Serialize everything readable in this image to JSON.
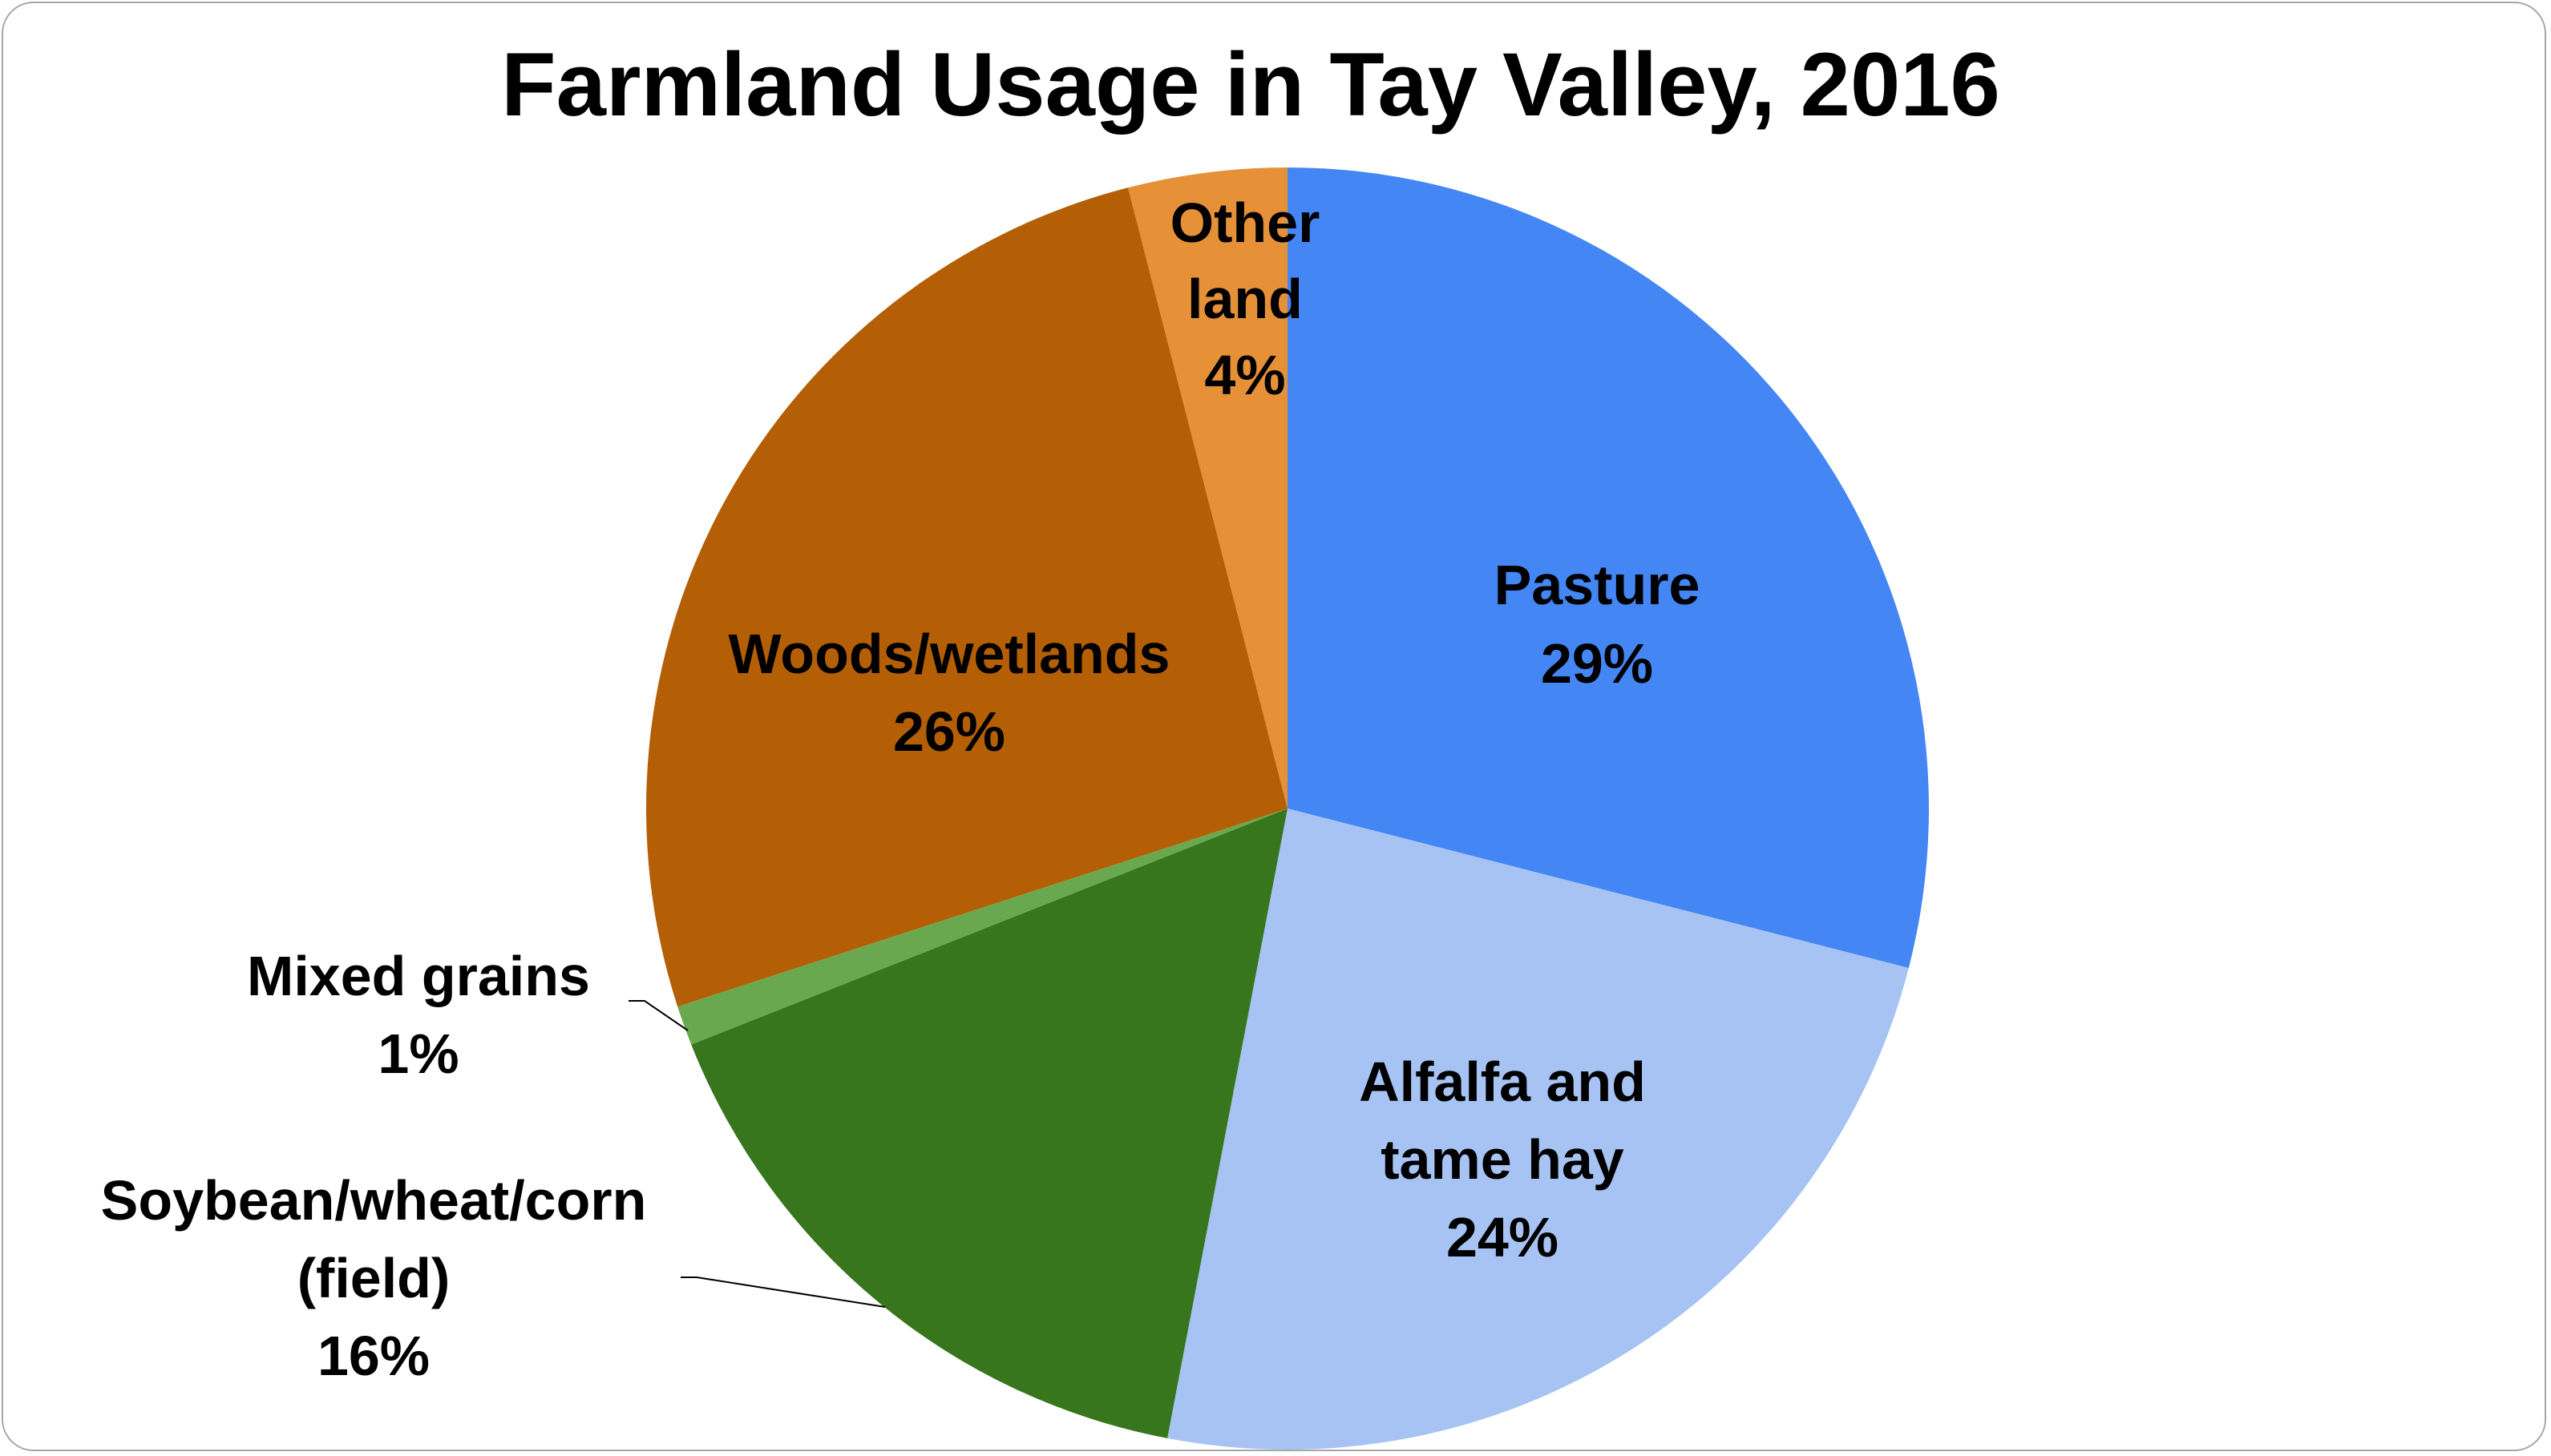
{
  "chart_data": {
    "type": "pie",
    "title": "Farmland Usage in Tay Valley, 2016",
    "start_angle_deg": 0,
    "direction": "clockwise",
    "slices": [
      {
        "category": "Pasture",
        "value": 29,
        "label_lines": [
          "Pasture",
          "29%"
        ],
        "color": "#4386f4"
      },
      {
        "category": "Alfalfa and tame hay",
        "value": 24,
        "label_lines": [
          "Alfalfa and",
          "tame hay",
          "24%"
        ],
        "color": "#a6c3f4"
      },
      {
        "category": "Soybean/wheat/corn (field)",
        "value": 16,
        "label_lines": [
          "Soybean/wheat/corn",
          "(field)",
          "16%"
        ],
        "color": "#38761d"
      },
      {
        "category": "Mixed grains",
        "value": 1,
        "label_lines": [
          "Mixed grains",
          "1%"
        ],
        "color": "#6aa84f"
      },
      {
        "category": "Woods/wetlands",
        "value": 26,
        "label_lines": [
          "Woods/wetlands",
          "26%"
        ],
        "color": "#b45f06"
      },
      {
        "category": "Other land",
        "value": 4,
        "label_lines": [
          "Other",
          "land",
          "4%"
        ],
        "color": "#e69138"
      }
    ]
  }
}
